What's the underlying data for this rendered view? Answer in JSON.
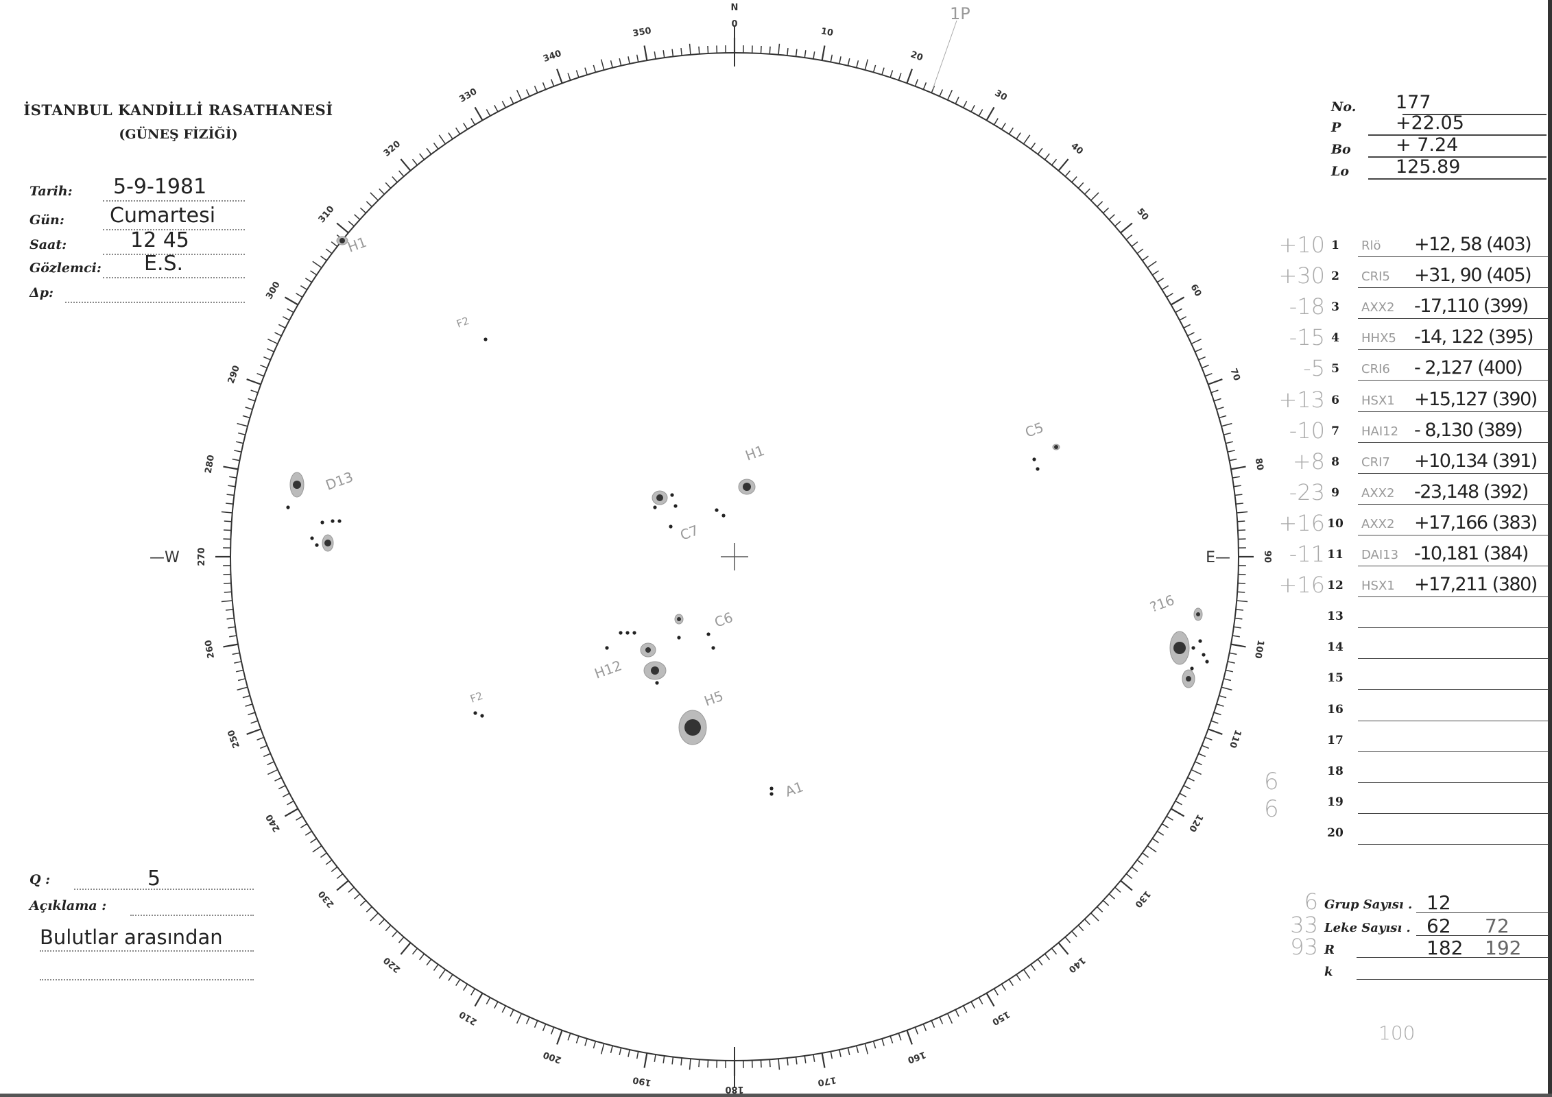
{
  "header": {
    "title": "İSTANBUL KANDİLLİ RASATHANESİ",
    "subtitle": "(GÜNEŞ FİZİĞİ)"
  },
  "fields": [
    {
      "label": "Tarih:",
      "value": "5-9-1981"
    },
    {
      "label": "Gün:",
      "value": "Cumartesi"
    },
    {
      "label": "Saat:",
      "value": "12 45"
    },
    {
      "label": "Gözlemci:",
      "value": "E.S."
    },
    {
      "label": "Δp:",
      "value": ""
    }
  ],
  "quality": {
    "label": "Q :",
    "value": "5"
  },
  "remarks": {
    "label": "Açıklama :",
    "value": "Bulutlar arasından"
  },
  "ephemeris": [
    {
      "label": "No.",
      "value": "177"
    },
    {
      "label": "P",
      "value": "+22.05"
    },
    {
      "label": "Bo",
      "value": "+ 7.24"
    },
    {
      "label": "Lo",
      "value": "125.89"
    }
  ],
  "groups": [
    {
      "note": "+10",
      "index": "1",
      "type": "Rlö",
      "pos": "+12, 58 (403)"
    },
    {
      "note": "+30",
      "index": "2",
      "type": "CRI5",
      "pos": "+31, 90 (405)"
    },
    {
      "note": "-18",
      "index": "3",
      "type": "AXX2",
      "pos": "-17,110 (399)"
    },
    {
      "note": "-15",
      "index": "4",
      "type": "HHX5",
      "pos": "-14, 122 (395)"
    },
    {
      "note": "-5",
      "index": "5",
      "type": "CRI6",
      "pos": "- 2,127 (400)"
    },
    {
      "note": "+13",
      "index": "6",
      "type": "HSX1",
      "pos": "+15,127 (390)"
    },
    {
      "note": "-10",
      "index": "7",
      "type": "HAI12",
      "pos": "- 8,130 (389)"
    },
    {
      "note": "+8",
      "index": "8",
      "type": "CRI7",
      "pos": "+10,134 (391)"
    },
    {
      "note": "-23",
      "index": "9",
      "type": "AXX2",
      "pos": "-23,148 (392)"
    },
    {
      "note": "+16",
      "index": "10",
      "type": "AXX2",
      "pos": "+17,166 (383)"
    },
    {
      "note": "-11",
      "index": "11",
      "type": "DAI13",
      "pos": "-10,181 (384)"
    },
    {
      "note": "+16",
      "index": "12",
      "type": "HSX1",
      "pos": "+17,211 (380)"
    },
    {
      "note": "",
      "index": "13",
      "type": "",
      "pos": ""
    },
    {
      "note": "",
      "index": "14",
      "type": "",
      "pos": ""
    },
    {
      "note": "",
      "index": "15",
      "type": "",
      "pos": ""
    },
    {
      "note": "",
      "index": "16",
      "type": "",
      "pos": ""
    },
    {
      "note": "",
      "index": "17",
      "type": "",
      "pos": ""
    },
    {
      "note": "",
      "index": "18",
      "type": "",
      "pos": ""
    },
    {
      "note": "",
      "index": "19",
      "type": "",
      "pos": ""
    },
    {
      "note": "",
      "index": "20",
      "type": "",
      "pos": ""
    }
  ],
  "side_notes": [
    "6",
    "6"
  ],
  "summary": [
    {
      "note": "6",
      "label": "Grup Sayısı .",
      "value": "12",
      "corrected": ""
    },
    {
      "note": "33",
      "label": "Leke Sayısı .",
      "value": "62",
      "corrected": "72"
    },
    {
      "note": "93",
      "label": "R",
      "value": "182",
      "corrected": "192"
    },
    {
      "note": "",
      "label": "k",
      "value": "",
      "corrected": ""
    }
  ],
  "footer_note": "100",
  "disk": {
    "north": "N",
    "west": "—W",
    "east": "E—",
    "top_note": "1P",
    "spot_labels": [
      "H1",
      "D13",
      "H1",
      "C7",
      "C5",
      "C6",
      "H12",
      "H5",
      "A1",
      "?16",
      "F2",
      "F2"
    ]
  }
}
